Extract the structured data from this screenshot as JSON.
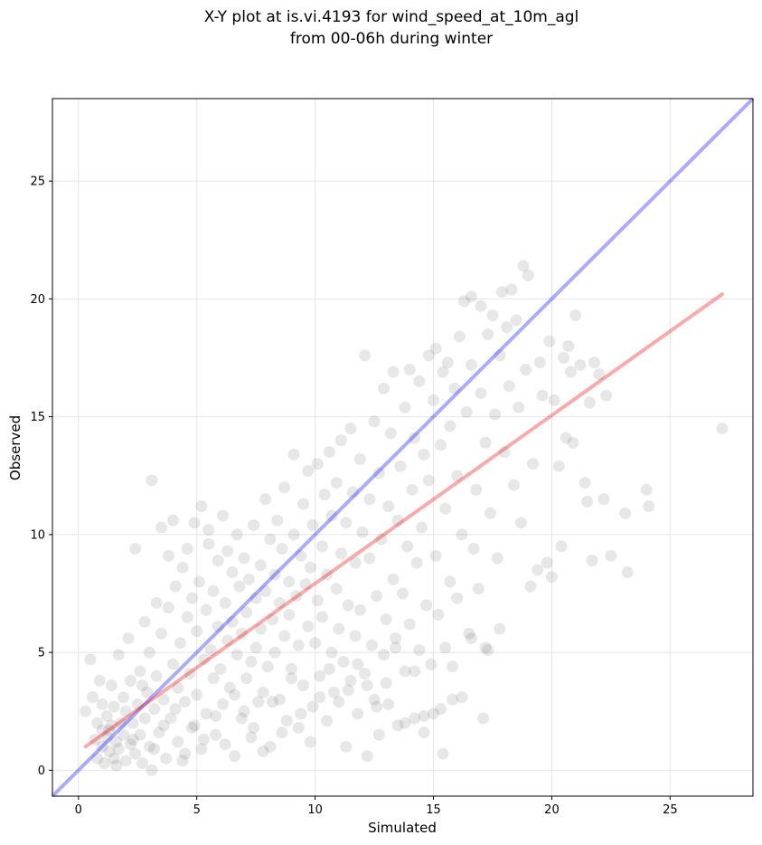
{
  "chart_data": {
    "type": "scatter",
    "title_line1": "X-Y plot at is.vi.4193 for wind_speed_at_10m_agl",
    "title_line2": "from 00-06h during winter",
    "xlabel": "Simulated",
    "ylabel": "Observed",
    "xlim": [
      -1.1,
      28.5
    ],
    "ylim": [
      -1.1,
      28.5
    ],
    "xticks": [
      "0",
      "5",
      "10",
      "15",
      "20",
      "25"
    ],
    "yticks": [
      "0",
      "5",
      "10",
      "15",
      "20",
      "25"
    ],
    "grid": true,
    "point_color": "#555555",
    "identity_line": {
      "color": "#0000ff",
      "from": [
        -1.1,
        -1.1
      ],
      "to": [
        28.5,
        28.5
      ]
    },
    "fit_line": {
      "color": "#ee0000",
      "from": [
        0.3,
        1.0
      ],
      "to": [
        27.2,
        20.2
      ]
    },
    "points": [
      [
        0.3,
        2.5
      ],
      [
        0.5,
        4.7
      ],
      [
        0.6,
        3.1
      ],
      [
        0.7,
        1.3
      ],
      [
        0.8,
        0.5
      ],
      [
        0.8,
        2.0
      ],
      [
        0.9,
        3.8
      ],
      [
        1.0,
        1.0
      ],
      [
        1.0,
        1.7
      ],
      [
        1.1,
        0.3
      ],
      [
        1.2,
        2.3
      ],
      [
        1.2,
        1.4
      ],
      [
        1.3,
        0.8
      ],
      [
        1.4,
        3.6
      ],
      [
        1.4,
        1.9
      ],
      [
        1.5,
        0.5
      ],
      [
        1.5,
        2.7
      ],
      [
        1.6,
        1.2
      ],
      [
        1.7,
        4.9
      ],
      [
        1.7,
        0.9
      ],
      [
        1.8,
        2.0
      ],
      [
        1.9,
        3.1
      ],
      [
        1.9,
        1.5
      ],
      [
        2.0,
        0.4
      ],
      [
        2.0,
        2.5
      ],
      [
        2.1,
        5.6
      ],
      [
        2.2,
        1.1
      ],
      [
        2.2,
        3.8
      ],
      [
        2.3,
        2.0
      ],
      [
        2.4,
        0.7
      ],
      [
        2.4,
        9.4
      ],
      [
        2.5,
        2.8
      ],
      [
        2.6,
        1.5
      ],
      [
        2.6,
        4.2
      ],
      [
        2.7,
        0.3
      ],
      [
        2.8,
        2.2
      ],
      [
        2.8,
        6.3
      ],
      [
        2.9,
        3.3
      ],
      [
        3.0,
        1.0
      ],
      [
        3.0,
        5.0
      ],
      [
        3.1,
        0.0
      ],
      [
        3.1,
        12.3
      ],
      [
        3.2,
        2.6
      ],
      [
        3.3,
        7.1
      ],
      [
        3.3,
        4.0
      ],
      [
        3.4,
        1.6
      ],
      [
        3.5,
        10.3
      ],
      [
        3.5,
        5.8
      ],
      [
        3.6,
        3.0
      ],
      [
        3.7,
        0.5
      ],
      [
        3.8,
        6.9
      ],
      [
        3.8,
        9.1
      ],
      [
        3.9,
        2.2
      ],
      [
        4.0,
        4.5
      ],
      [
        4.0,
        10.6
      ],
      [
        4.1,
        7.8
      ],
      [
        4.2,
        1.2
      ],
      [
        4.2,
        3.5
      ],
      [
        4.3,
        5.4
      ],
      [
        4.4,
        8.6
      ],
      [
        4.4,
        0.4
      ],
      [
        4.5,
        2.9
      ],
      [
        4.6,
        6.5
      ],
      [
        4.6,
        9.4
      ],
      [
        4.7,
        4.1
      ],
      [
        4.8,
        1.8
      ],
      [
        4.8,
        7.3
      ],
      [
        4.9,
        10.5
      ],
      [
        5.0,
        3.2
      ],
      [
        5.0,
        5.9
      ],
      [
        5.1,
        8.0
      ],
      [
        5.2,
        0.9
      ],
      [
        5.2,
        11.2
      ],
      [
        5.3,
        4.7
      ],
      [
        5.4,
        6.8
      ],
      [
        5.4,
        2.4
      ],
      [
        5.5,
        9.6
      ],
      [
        5.5,
        10.2
      ],
      [
        5.6,
        5.1
      ],
      [
        5.7,
        3.9
      ],
      [
        5.7,
        7.6
      ],
      [
        5.8,
        1.5
      ],
      [
        5.9,
        8.9
      ],
      [
        5.9,
        6.1
      ],
      [
        6.0,
        4.3
      ],
      [
        6.1,
        10.8
      ],
      [
        6.1,
        2.8
      ],
      [
        6.2,
        7.1
      ],
      [
        6.3,
        5.5
      ],
      [
        6.3,
        9.3
      ],
      [
        6.4,
        3.5
      ],
      [
        6.5,
        6.3
      ],
      [
        6.5,
        8.4
      ],
      [
        6.6,
        0.6
      ],
      [
        6.7,
        4.9
      ],
      [
        6.7,
        10.0
      ],
      [
        6.8,
        7.8
      ],
      [
        6.9,
        2.2
      ],
      [
        6.9,
        5.8
      ],
      [
        7.0,
        9.0
      ],
      [
        7.1,
        3.9
      ],
      [
        7.1,
        6.7
      ],
      [
        7.2,
        8.1
      ],
      [
        7.3,
        1.4
      ],
      [
        7.3,
        4.6
      ],
      [
        7.4,
        10.4
      ],
      [
        7.5,
        7.3
      ],
      [
        7.5,
        5.2
      ],
      [
        7.6,
        2.9
      ],
      [
        7.7,
        8.7
      ],
      [
        7.7,
        6.0
      ],
      [
        7.8,
        3.3
      ],
      [
        7.9,
        11.5
      ],
      [
        7.9,
        7.6
      ],
      [
        8.0,
        4.4
      ],
      [
        8.1,
        9.8
      ],
      [
        8.1,
        1.0
      ],
      [
        8.2,
        6.4
      ],
      [
        8.3,
        8.3
      ],
      [
        8.3,
        5.0
      ],
      [
        8.4,
        10.6
      ],
      [
        8.5,
        3.0
      ],
      [
        8.5,
        7.1
      ],
      [
        8.6,
        9.4
      ],
      [
        8.7,
        5.7
      ],
      [
        8.7,
        12.0
      ],
      [
        8.8,
        2.1
      ],
      [
        8.9,
        8.0
      ],
      [
        8.9,
        6.6
      ],
      [
        9.0,
        4.3
      ],
      [
        9.1,
        10.0
      ],
      [
        9.1,
        13.4
      ],
      [
        9.2,
        7.4
      ],
      [
        9.3,
        1.8
      ],
      [
        9.3,
        5.3
      ],
      [
        9.4,
        9.1
      ],
      [
        9.5,
        11.3
      ],
      [
        9.5,
        3.6
      ],
      [
        9.6,
        7.9
      ],
      [
        9.7,
        6.1
      ],
      [
        9.7,
        12.7
      ],
      [
        9.8,
        8.6
      ],
      [
        9.9,
        2.7
      ],
      [
        9.9,
        10.4
      ],
      [
        10.0,
        5.4
      ],
      [
        10.1,
        13.0
      ],
      [
        10.1,
        7.2
      ],
      [
        10.2,
        4.0
      ],
      [
        10.3,
        9.5
      ],
      [
        10.3,
        6.5
      ],
      [
        10.4,
        11.7
      ],
      [
        10.5,
        2.1
      ],
      [
        10.5,
        8.3
      ],
      [
        10.6,
        13.5
      ],
      [
        10.7,
        5.0
      ],
      [
        10.7,
        10.8
      ],
      [
        10.8,
        3.3
      ],
      [
        10.9,
        7.7
      ],
      [
        10.9,
        12.2
      ],
      [
        11.0,
        6.0
      ],
      [
        11.1,
        14.0
      ],
      [
        11.1,
        9.2
      ],
      [
        11.2,
        4.6
      ],
      [
        11.3,
        1.0
      ],
      [
        11.3,
        10.5
      ],
      [
        11.4,
        7.0
      ],
      [
        11.5,
        14.5
      ],
      [
        11.5,
        3.8
      ],
      [
        11.6,
        11.8
      ],
      [
        11.7,
        5.7
      ],
      [
        11.7,
        8.8
      ],
      [
        11.8,
        2.4
      ],
      [
        11.9,
        13.2
      ],
      [
        11.9,
        6.8
      ],
      [
        12.0,
        10.1
      ],
      [
        12.1,
        4.1
      ],
      [
        12.1,
        17.6
      ],
      [
        12.2,
        0.6
      ],
      [
        12.3,
        9.0
      ],
      [
        12.3,
        11.5
      ],
      [
        12.4,
        5.3
      ],
      [
        12.5,
        14.8
      ],
      [
        12.5,
        3.0
      ],
      [
        12.6,
        7.4
      ],
      [
        12.7,
        12.6
      ],
      [
        12.7,
        1.5
      ],
      [
        12.8,
        9.8
      ],
      [
        12.9,
        16.2
      ],
      [
        12.9,
        4.9
      ],
      [
        13.0,
        6.4
      ],
      [
        13.1,
        11.2
      ],
      [
        13.1,
        2.8
      ],
      [
        13.2,
        14.3
      ],
      [
        13.3,
        8.1
      ],
      [
        13.3,
        16.9
      ],
      [
        13.4,
        5.6
      ],
      [
        13.5,
        10.6
      ],
      [
        13.5,
        1.9
      ],
      [
        13.6,
        12.9
      ],
      [
        13.7,
        7.5
      ],
      [
        13.8,
        15.4
      ],
      [
        13.8,
        4.2
      ],
      [
        13.9,
        9.5
      ],
      [
        14.0,
        17.0
      ],
      [
        14.0,
        6.2
      ],
      [
        14.1,
        11.9
      ],
      [
        14.2,
        2.2
      ],
      [
        14.2,
        14.1
      ],
      [
        14.3,
        8.8
      ],
      [
        14.4,
        16.5
      ],
      [
        14.4,
        5.1
      ],
      [
        14.5,
        10.3
      ],
      [
        14.6,
        13.4
      ],
      [
        14.6,
        1.6
      ],
      [
        14.7,
        7.0
      ],
      [
        14.8,
        17.6
      ],
      [
        14.8,
        12.3
      ],
      [
        14.9,
        4.5
      ],
      [
        15.0,
        15.7
      ],
      [
        15.1,
        9.1
      ],
      [
        15.1,
        17.9
      ],
      [
        15.2,
        6.6
      ],
      [
        15.3,
        13.8
      ],
      [
        15.3,
        2.6
      ],
      [
        15.4,
        16.9
      ],
      [
        15.5,
        11.1
      ],
      [
        15.5,
        5.2
      ],
      [
        15.6,
        17.3
      ],
      [
        15.7,
        14.6
      ],
      [
        15.7,
        8.0
      ],
      [
        15.8,
        3.0
      ],
      [
        15.9,
        16.2
      ],
      [
        16.0,
        12.5
      ],
      [
        16.0,
        7.3
      ],
      [
        16.1,
        18.4
      ],
      [
        16.2,
        10.0
      ],
      [
        16.2,
        3.1
      ],
      [
        16.3,
        19.9
      ],
      [
        16.4,
        15.2
      ],
      [
        16.5,
        5.8
      ],
      [
        16.6,
        20.1
      ],
      [
        16.6,
        17.2
      ],
      [
        16.7,
        9.4
      ],
      [
        16.8,
        11.9
      ],
      [
        16.9,
        7.7
      ],
      [
        17.0,
        19.7
      ],
      [
        17.0,
        16.0
      ],
      [
        17.1,
        2.2
      ],
      [
        17.2,
        13.9
      ],
      [
        17.3,
        18.5
      ],
      [
        17.3,
        5.1
      ],
      [
        17.4,
        10.9
      ],
      [
        17.5,
        19.3
      ],
      [
        17.6,
        15.1
      ],
      [
        17.7,
        9.0
      ],
      [
        17.8,
        17.6
      ],
      [
        17.8,
        6.0
      ],
      [
        17.9,
        20.3
      ],
      [
        18.0,
        13.5
      ],
      [
        18.1,
        18.8
      ],
      [
        18.2,
        16.3
      ],
      [
        18.3,
        20.4
      ],
      [
        18.4,
        12.1
      ],
      [
        18.5,
        19.1
      ],
      [
        18.6,
        15.4
      ],
      [
        18.7,
        10.5
      ],
      [
        18.8,
        21.4
      ],
      [
        18.9,
        17.0
      ],
      [
        19.0,
        21.0
      ],
      [
        19.1,
        7.8
      ],
      [
        19.2,
        13.0
      ],
      [
        19.4,
        8.5
      ],
      [
        19.5,
        17.3
      ],
      [
        19.6,
        15.9
      ],
      [
        19.8,
        8.8
      ],
      [
        19.9,
        18.2
      ],
      [
        20.0,
        8.2
      ],
      [
        20.1,
        15.7
      ],
      [
        20.3,
        12.9
      ],
      [
        20.4,
        9.5
      ],
      [
        20.5,
        17.5
      ],
      [
        20.6,
        14.1
      ],
      [
        20.7,
        18.0
      ],
      [
        20.8,
        16.9
      ],
      [
        20.9,
        13.9
      ],
      [
        21.0,
        19.3
      ],
      [
        21.2,
        17.2
      ],
      [
        21.4,
        12.2
      ],
      [
        21.5,
        11.4
      ],
      [
        21.6,
        15.6
      ],
      [
        21.7,
        8.9
      ],
      [
        21.8,
        17.3
      ],
      [
        22.0,
        16.8
      ],
      [
        22.2,
        11.5
      ],
      [
        22.3,
        15.9
      ],
      [
        22.5,
        9.1
      ],
      [
        23.1,
        10.9
      ],
      [
        23.2,
        8.4
      ],
      [
        24.0,
        11.9
      ],
      [
        24.1,
        11.2
      ],
      [
        27.2,
        14.5
      ],
      [
        1.0,
        2.8
      ],
      [
        1.3,
        1.7
      ],
      [
        1.6,
        0.2
      ],
      [
        2.3,
        1.3
      ],
      [
        2.7,
        3.6
      ],
      [
        3.2,
        0.9
      ],
      [
        3.6,
        1.9
      ],
      [
        4.1,
        2.6
      ],
      [
        4.5,
        0.7
      ],
      [
        4.9,
        1.9
      ],
      [
        5.3,
        1.3
      ],
      [
        5.8,
        2.3
      ],
      [
        6.2,
        1.1
      ],
      [
        6.6,
        3.2
      ],
      [
        7.0,
        2.5
      ],
      [
        7.4,
        1.8
      ],
      [
        7.8,
        0.8
      ],
      [
        8.2,
        2.9
      ],
      [
        8.6,
        1.6
      ],
      [
        9.0,
        3.9
      ],
      [
        9.4,
        2.4
      ],
      [
        9.8,
        1.2
      ],
      [
        10.2,
        3.1
      ],
      [
        10.6,
        4.3
      ],
      [
        11.0,
        2.9
      ],
      [
        11.4,
        3.4
      ],
      [
        11.8,
        4.5
      ],
      [
        12.2,
        3.6
      ],
      [
        12.6,
        2.7
      ],
      [
        13.0,
        3.7
      ],
      [
        13.4,
        5.2
      ],
      [
        13.8,
        2.0
      ],
      [
        14.2,
        4.2
      ],
      [
        14.6,
        2.3
      ],
      [
        15.0,
        2.4
      ],
      [
        15.4,
        0.7
      ],
      [
        15.8,
        4.4
      ],
      [
        16.6,
        5.6
      ],
      [
        17.2,
        5.2
      ]
    ]
  }
}
